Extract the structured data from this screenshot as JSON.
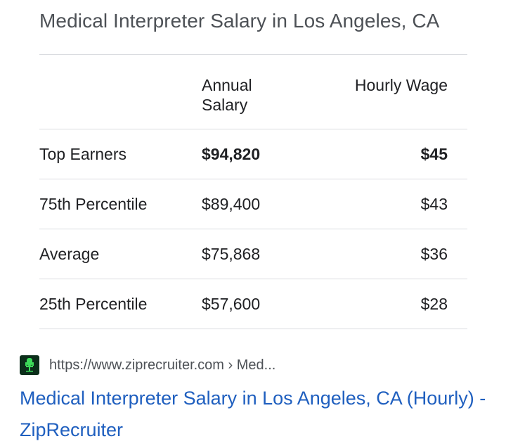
{
  "card": {
    "title": "Medical Interpreter Salary in Los Angeles, CA"
  },
  "table": {
    "headers": {
      "annual": "Annual Salary",
      "hourly": "Hourly Wage"
    },
    "rows": [
      {
        "label": "Top Earners",
        "annual": "$94,820",
        "hourly": "$45",
        "bold": true
      },
      {
        "label": "75th Percentile",
        "annual": "$89,400",
        "hourly": "$43",
        "bold": false
      },
      {
        "label": "Average",
        "annual": "$75,868",
        "hourly": "$36",
        "bold": false
      },
      {
        "label": "25th Percentile",
        "annual": "$57,600",
        "hourly": "$28",
        "bold": false
      }
    ]
  },
  "source": {
    "favicon_icon": "ziprecruiter-chair-icon",
    "url_display": "https://www.ziprecruiter.com › Med...",
    "link_title": "Medical Interpreter Salary in Los Angeles, CA (Hourly) - ZipRecruiter"
  },
  "colors": {
    "link": "#1f5fbf",
    "favicon_bg": "#0b2e1a",
    "favicon_fg": "#3ddc5a",
    "divider": "#dadce0"
  }
}
